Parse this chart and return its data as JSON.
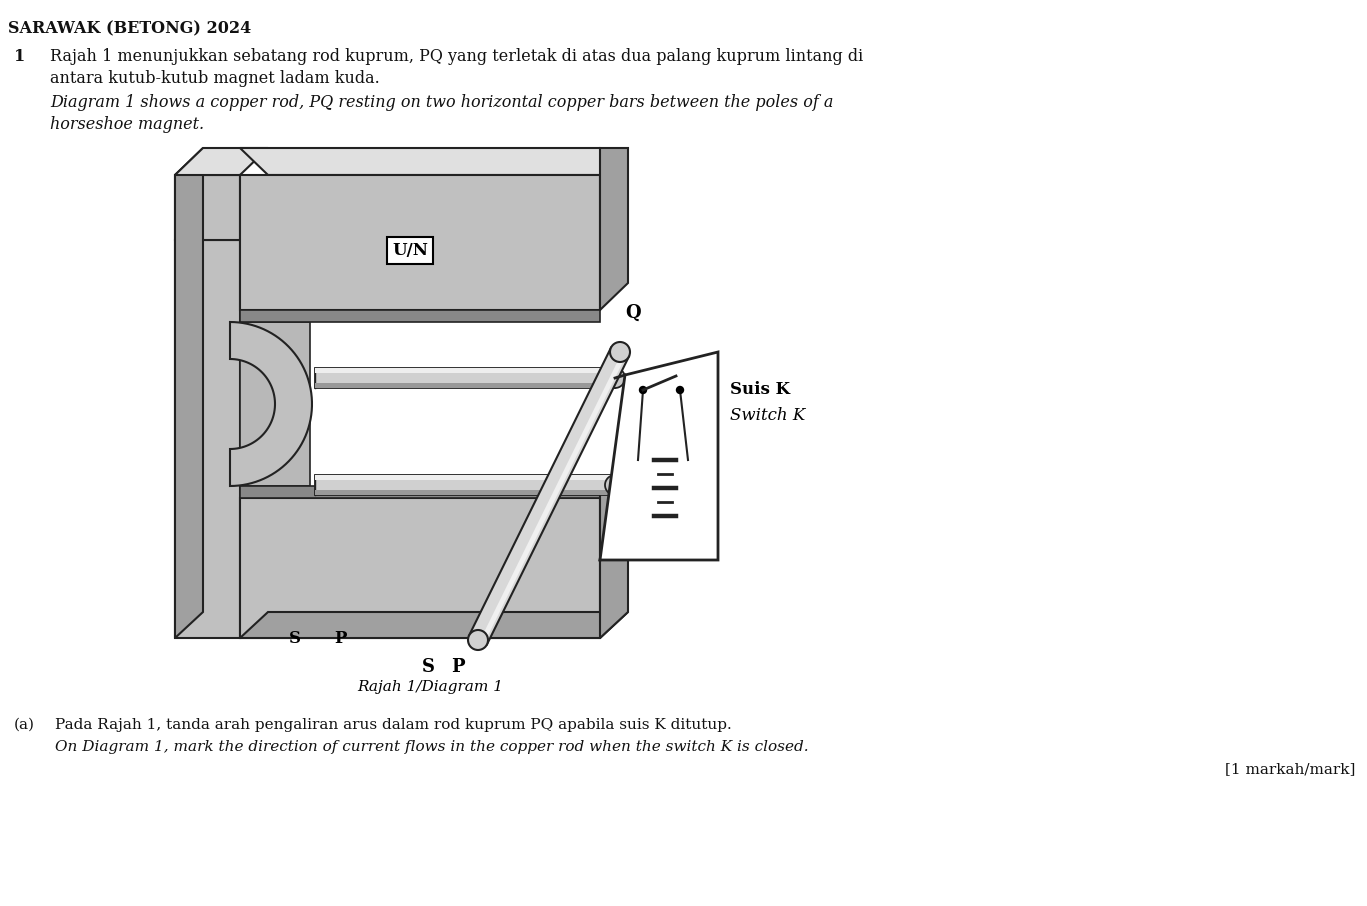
{
  "title": "SARAWAK (BETONG) 2024",
  "q_number": "1",
  "text_malay_1": "Rajah 1 menunjukkan sebatang rod kuprum, PQ yang terletak di atas dua palang kuprum lintang di",
  "text_malay_2": "antara kutub-kutub magnet ladam kuda.",
  "text_english_1": "Diagram 1 shows a copper rod, PQ resting on two horizontal copper bars between the poles of a",
  "text_english_2": "horseshoe magnet.",
  "label_UN": "U/N",
  "label_S": "S",
  "label_P": "P",
  "label_Q": "Q",
  "label_SuisK": "Suis K",
  "label_SwitchK": "Switch K",
  "label_diagram": "Rajah 1/Diagram 1",
  "text_a_malay": "Pada Rajah 1, tanda arah pengaliran arus dalam rod kuprum PQ apabila suis K ditutup.",
  "text_a_english": "On Diagram 1, mark the direction of current flows in the copper rod when the switch K is closed.",
  "text_marks": "[1 markah/mark]",
  "bg_color": "#ffffff",
  "magnet_gray": "#c0c0c0",
  "magnet_dark": "#a0a0a0",
  "magnet_light": "#e0e0e0",
  "magnet_edge": "#222222",
  "arrow_color": "#cc00cc",
  "text_color": "#111111"
}
